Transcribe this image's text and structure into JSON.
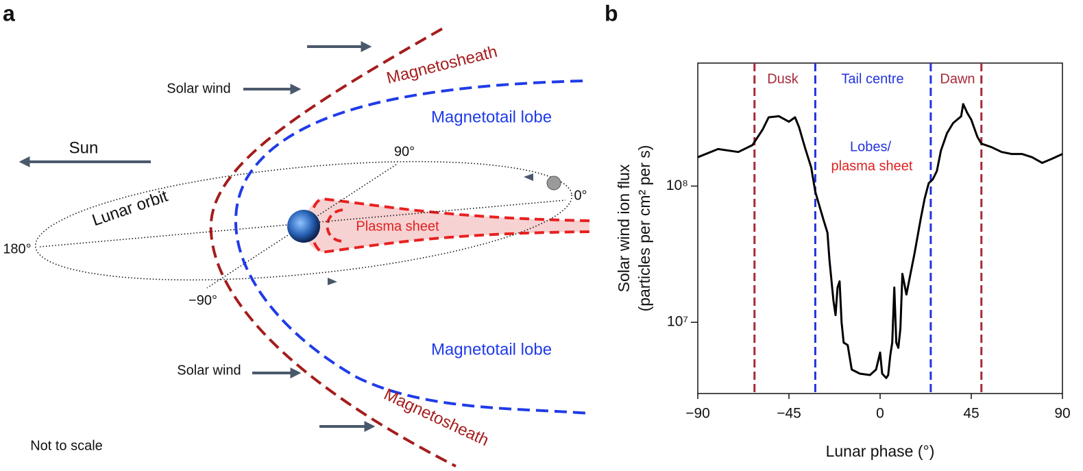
{
  "diagram": {
    "panel_label": "a",
    "sun": "Sun",
    "solar_wind_upper": "Solar wind",
    "solar_wind_lower": "Solar wind",
    "magnetosheath_upper": "Magnetosheath",
    "magnetosheath_lower": "Magnetosheath",
    "lobe_upper": "Magnetotail lobe",
    "lobe_lower": "Magnetotail lobe",
    "lunar_orbit": "Lunar orbit",
    "phase_90": "90°",
    "phase_0": "0°",
    "phase_180": "180°",
    "phase_minus_90": "−90°",
    "plasma_sheet": "Plasma sheet",
    "note": "Not to scale"
  },
  "chart_data": {
    "type": "line",
    "panel_label": "b",
    "xlabel": "Lunar phase (°)",
    "ylabel": [
      "Solar wind ion flux",
      "(particles per cm² per s)"
    ],
    "color": "#000000",
    "ylog": true,
    "xlim": [
      -90,
      90
    ],
    "xticks": [
      {
        "value": -90,
        "label": "−90"
      },
      {
        "value": -45,
        "label": "−45"
      },
      0,
      45,
      90
    ],
    "ylim": [
      3000000,
      800000000
    ],
    "yticks": [
      {
        "value": 10000000,
        "label": "10⁷"
      },
      {
        "value": 100000000,
        "label": "10⁸"
      }
    ],
    "vlines": [
      {
        "x": -62,
        "color": "#a52a3a"
      },
      {
        "x": -32,
        "color": "#2233dd"
      },
      {
        "x": 25,
        "color": "#2233dd"
      },
      {
        "x": 50,
        "color": "#a52a3a"
      }
    ],
    "annotations": [
      {
        "text": "Dusk",
        "color": "#a52a3a"
      },
      {
        "text": "Tail centre",
        "color": "#2233dd"
      },
      {
        "text": "Dawn",
        "color": "#a52a3a"
      },
      {
        "text": "Lobes/",
        "color": "#2233dd"
      },
      {
        "text": "plasma sheet",
        "color": "#e02020"
      }
    ],
    "x": [
      -90,
      -80,
      -70,
      -63,
      -58,
      -55,
      -50,
      -45,
      -42,
      -40,
      -37,
      -34,
      -32,
      -30,
      -28,
      -26,
      -25,
      -23,
      -22,
      -21,
      -20,
      -19,
      -18,
      -16,
      -14,
      -10,
      -5,
      -2,
      0,
      1,
      3,
      4,
      5,
      6,
      7,
      8,
      9,
      10,
      11,
      13,
      15,
      17,
      20,
      22,
      24,
      26,
      28,
      30,
      33,
      36,
      40,
      41,
      43,
      45,
      48,
      50,
      55,
      60,
      65,
      70,
      75,
      80,
      85,
      90
    ],
    "values": [
      163000000,
      187000000,
      178000000,
      200000000,
      260000000,
      320000000,
      326000000,
      297000000,
      320000000,
      270000000,
      190000000,
      137000000,
      91000000,
      72000000,
      57000000,
      45500000,
      28700000,
      14300000,
      11300000,
      18000000,
      20000000,
      10000000,
      7100000,
      6800000,
      4500000,
      4200000,
      4100000,
      4500000,
      6000000,
      4200000,
      3900000,
      4100000,
      5700000,
      7100000,
      18000000,
      7100000,
      6500000,
      9000000,
      22700000,
      16000000,
      22700000,
      32000000,
      57000000,
      81000000,
      105000000,
      112000000,
      129000000,
      182000000,
      244000000,
      290000000,
      325000000,
      400000000,
      345000000,
      307000000,
      230000000,
      205000000,
      193000000,
      178000000,
      172000000,
      172000000,
      163000000,
      148000000,
      159000000,
      172000000
    ]
  }
}
